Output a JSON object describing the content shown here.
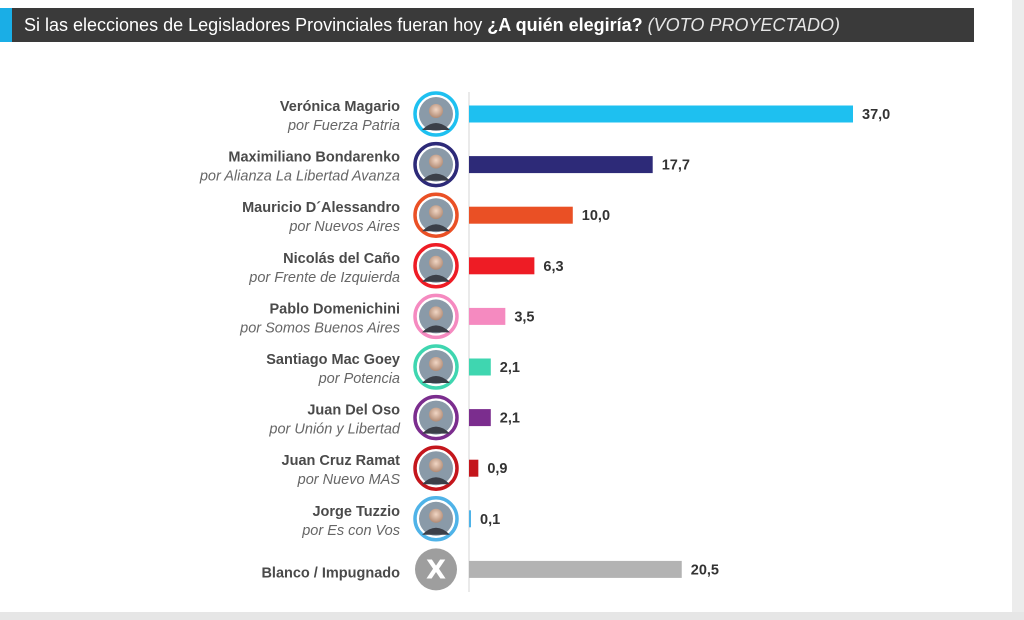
{
  "header": {
    "question_prefix": "Si las elecciones de Legisladores Provinciales fueran hoy",
    "question": "¿A quién elegiría?",
    "note": "(VOTO PROYECTADO)",
    "accent_color": "#1aaee6"
  },
  "chart_data": {
    "type": "bar",
    "orientation": "horizontal",
    "xlim": [
      0,
      37
    ],
    "grid": false,
    "legend": "none",
    "categories": [
      {
        "name": "Verónica Magario",
        "party": "por Fuerza Patria",
        "value": "37,0",
        "color": "#1ec0f0",
        "avatar": "candidate-photo"
      },
      {
        "name": "Maximiliano Bondarenko",
        "party": "por Alianza La Libertad Avanza",
        "value": "17,7",
        "color": "#2d2a78",
        "avatar": "candidate-photo"
      },
      {
        "name": "Mauricio D´Alessandro",
        "party": "por Nuevos Aires",
        "value": "10,0",
        "color": "#ea5025",
        "avatar": "candidate-photo"
      },
      {
        "name": "Nicolás del Caño ",
        "party": "por Frente de Izquierda",
        "value": "6,3",
        "color": "#ee1c25",
        "avatar": "candidate-photo"
      },
      {
        "name": "Pablo Domenichini",
        "party": "por Somos Buenos Aires",
        "value": "3,5",
        "color": "#f58ac0",
        "avatar": "candidate-photo"
      },
      {
        "name": "Santiago Mac Goey",
        "party": "por Potencia",
        "value": "2,1",
        "color": "#3fd6b0",
        "avatar": "candidate-photo"
      },
      {
        "name": "Juan Del Oso",
        "party": "por Unión y Libertad",
        "value": "2,1",
        "color": "#7b2d8e",
        "avatar": "candidate-photo"
      },
      {
        "name": "Juan Cruz Ramat",
        "party": "por Nuevo MAS",
        "value": "0,9",
        "color": "#c4161c",
        "avatar": "candidate-photo"
      },
      {
        "name": "Jorge Tuzzio",
        "party": "por Es con Vos",
        "value": "0,1",
        "color": "#4fb3e8",
        "avatar": "candidate-photo"
      },
      {
        "name": "Blanco / Impugnado",
        "party": "",
        "value": "20,5",
        "color": "#b3b3b3",
        "avatar": "x-icon"
      }
    ]
  }
}
